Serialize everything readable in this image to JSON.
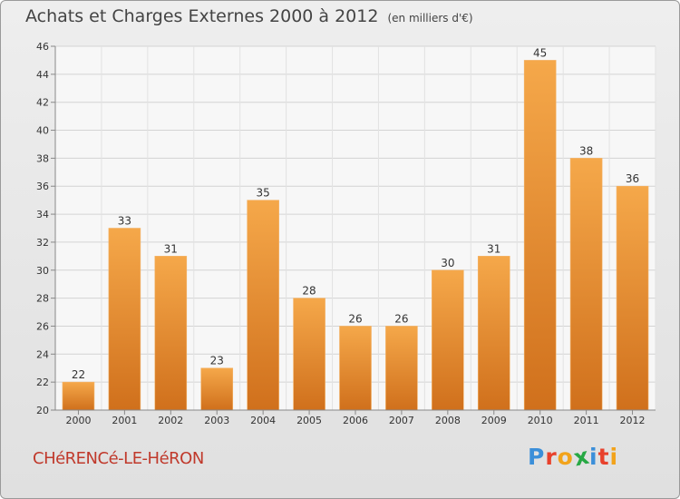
{
  "header": {
    "title": "Achats et Charges Externes 2000 à 2012",
    "subtitle": "(en milliers d'€)"
  },
  "footer": {
    "commune": "CHéRENCé-LE-HéRON",
    "logo_letters": [
      "P",
      "r",
      "o",
      "x",
      "i",
      "t",
      "i"
    ],
    "logo_colors": [
      "#3b8fd9",
      "#e8412c",
      "#f2a31b",
      "#27a844",
      "#3b8fd9",
      "#e8412c",
      "#f2a31b"
    ]
  },
  "chart_data": {
    "type": "bar",
    "title": "Achats et Charges Externes 2000 à 2012",
    "subtitle": "(en milliers d'€)",
    "xlabel": "",
    "ylabel": "",
    "categories": [
      "2000",
      "2001",
      "2002",
      "2003",
      "2004",
      "2005",
      "2006",
      "2007",
      "2008",
      "2009",
      "2010",
      "2011",
      "2012"
    ],
    "values": [
      22,
      33,
      31,
      23,
      35,
      28,
      26,
      26,
      30,
      31,
      45,
      38,
      36
    ],
    "ylim": [
      20,
      46
    ],
    "yticks": [
      20,
      22,
      24,
      26,
      28,
      30,
      32,
      34,
      36,
      38,
      40,
      42,
      44,
      46
    ],
    "grid": true,
    "bar_color": "#f0a040"
  }
}
